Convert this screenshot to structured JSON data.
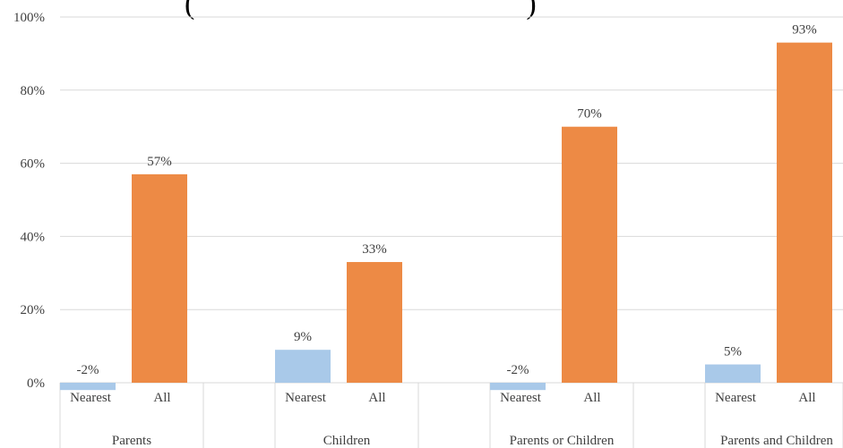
{
  "chart_data": {
    "type": "bar",
    "title_fragment": "(",
    "title_fragment_end": ")",
    "ylim": [
      0,
      100
    ],
    "yticks": [
      {
        "value": 0,
        "label": "0%"
      },
      {
        "value": 20,
        "label": "20%"
      },
      {
        "value": 40,
        "label": "40%"
      },
      {
        "value": 60,
        "label": "60%"
      },
      {
        "value": 80,
        "label": "80%"
      },
      {
        "value": 100,
        "label": "100%"
      }
    ],
    "groups": [
      {
        "label": "Parents",
        "bars": [
          {
            "label": "Nearest",
            "value": -2,
            "data_label": "-2%"
          },
          {
            "label": "All",
            "value": 57,
            "data_label": "57%"
          }
        ]
      },
      {
        "label": "Children",
        "bars": [
          {
            "label": "Nearest",
            "value": 9,
            "data_label": "9%"
          },
          {
            "label": "All",
            "value": 33,
            "data_label": "33%"
          }
        ]
      },
      {
        "label": "Parents or Children",
        "bars": [
          {
            "label": "Nearest",
            "value": -2,
            "data_label": "-2%"
          },
          {
            "label": "All",
            "value": 70,
            "data_label": "70%"
          }
        ]
      },
      {
        "label": "Parents and Children",
        "bars": [
          {
            "label": "Nearest",
            "value": 5,
            "data_label": "5%"
          },
          {
            "label": "All",
            "value": 93,
            "data_label": "93%"
          }
        ]
      }
    ],
    "colors": {
      "Nearest": "#a9c9e9",
      "All": "#ed8a45"
    },
    "gridlines": true
  }
}
